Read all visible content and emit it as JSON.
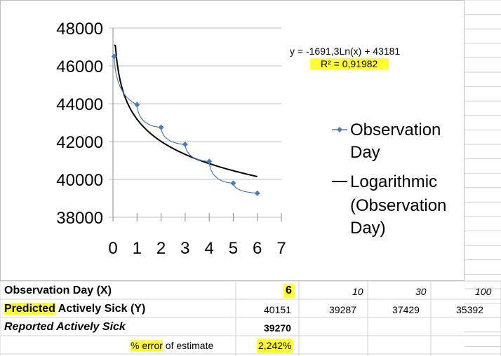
{
  "chart_data": {
    "type": "scatter",
    "series": [
      {
        "name": "Observation Day",
        "color": "#4a7ebb",
        "x": [
          0.05,
          1,
          2,
          3,
          4,
          5,
          6
        ],
        "y": [
          46500,
          43950,
          42750,
          41850,
          40950,
          39800,
          39270
        ]
      },
      {
        "name": "Logarithmic (Observation Day)",
        "color": "#000000",
        "type": "trendline",
        "a": -1691.3,
        "b": 43181
      }
    ],
    "trendline_label": {
      "equation": "y = -1691,3Ln(x) + 43181",
      "r2": "R² = 0,91982"
    },
    "legend": {
      "series1": "Observation Day",
      "series2_line1": "Logarithmic",
      "series2_line2": "(Observation",
      "series2_line3": "Day)",
      "series1_line1": "Observation",
      "series1_line2": "Day"
    },
    "xlim": [
      0,
      7
    ],
    "ylim": [
      38000,
      48000
    ],
    "xticks": [
      "0",
      "1",
      "2",
      "3",
      "4",
      "5",
      "6",
      "7"
    ],
    "yticks": [
      "38000",
      "40000",
      "42000",
      "44000",
      "46000",
      "48000"
    ],
    "grid": "horizontal",
    "legend_placement": "right",
    "title": "",
    "xlabel": "",
    "ylabel": ""
  },
  "table": {
    "row1": {
      "label": "Observation Day (X)",
      "v1": "6",
      "v2": "10",
      "v3": "30",
      "v4": "100"
    },
    "row2": {
      "label_hl": "Predicted",
      "label_rest": " Actively Sick (Y)",
      "v1": "40151",
      "v2": "39287",
      "v3": "37429",
      "v4": "35392"
    },
    "row3": {
      "label": "Reported Actively Sick",
      "v1": "39270"
    },
    "row4": {
      "label_hl": "% error",
      "label_rest": " of estimate",
      "v1": "2,242%"
    }
  },
  "colors": {
    "highlight": "#ffff33",
    "series": "#4a7ebb",
    "grid": "#d0d0d0"
  }
}
